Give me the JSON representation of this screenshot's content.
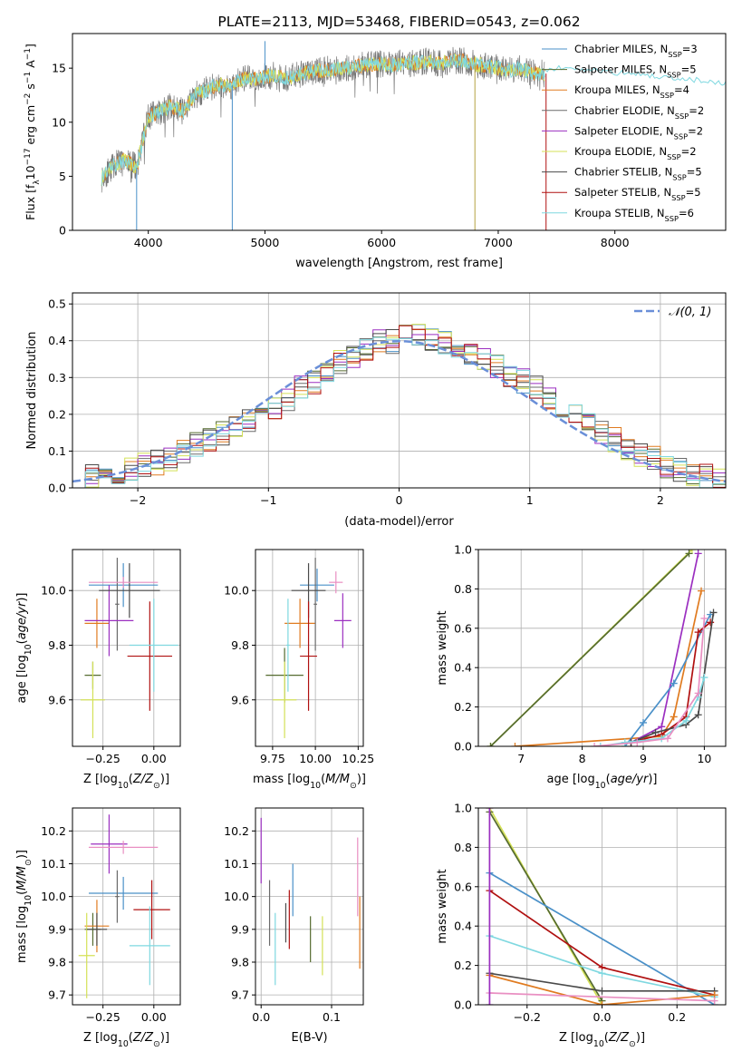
{
  "colors": {
    "Chabrier MILES": "#4a90c8",
    "Salpeter MILES": "#556b2f",
    "Kroupa MILES": "#e07b20",
    "Chabrier ELODIE": "#6b6b6b",
    "Salpeter ELODIE": "#9b2fc0",
    "Kroupa ELODIE": "#d4e157",
    "Chabrier STELIB": "#4a4a4a",
    "Salpeter STELIB": "#b01010",
    "Kroupa STELIB": "#7fd8e0",
    "normal_curve": "#6a8fd8"
  },
  "chart_data": [
    {
      "id": "spectrum",
      "type": "line",
      "title": "PLATE=2113, MJD=53468, FIBERID=0543, z=0.062",
      "xlabel": "wavelength [Angstrom, rest frame]",
      "ylabel": "Flux [f$_\\lambda$10$^{-17}$ erg cm$^{-2}$ s$^{-1}$ A$^{-1}$]",
      "ylabel_parts": {
        "main": "Flux [f",
        "sub": "λ",
        "mid": "10",
        "sup1": "−17",
        "mid2": " erg cm",
        "sup2": "−2",
        "mid3": " s",
        "sup3": "−1",
        "mid4": " A",
        "sup4": "−1",
        "end": "]"
      },
      "xlim": [
        3350,
        8950
      ],
      "ylim": [
        0,
        18.2
      ],
      "xticks": [
        4000,
        5000,
        6000,
        7000,
        8000
      ],
      "yticks": [
        0,
        5,
        10,
        15
      ],
      "legend": [
        {
          "label": "Chabrier MILES, N",
          "sub": "SSP",
          "n": "=3",
          "model": "Chabrier MILES"
        },
        {
          "label": "Salpeter MILES, N",
          "sub": "SSP",
          "n": "=5",
          "model": "Salpeter MILES"
        },
        {
          "label": "Kroupa MILES, N",
          "sub": "SSP",
          "n": "=4",
          "model": "Kroupa MILES"
        },
        {
          "label": "Chabrier ELODIE, N",
          "sub": "SSP",
          "n": "=2",
          "model": "Chabrier ELODIE"
        },
        {
          "label": "Salpeter ELODIE, N",
          "sub": "SSP",
          "n": "=2",
          "model": "Salpeter ELODIE"
        },
        {
          "label": "Kroupa ELODIE, N",
          "sub": "SSP",
          "n": "=2",
          "model": "Kroupa ELODIE"
        },
        {
          "label": "Chabrier STELIB, N",
          "sub": "SSP",
          "n": "=5",
          "model": "Chabrier STELIB"
        },
        {
          "label": "Salpeter STELIB, N",
          "sub": "SSP",
          "n": "=5",
          "model": "Salpeter STELIB"
        },
        {
          "label": "Kroupa STELIB, N",
          "sub": "SSP",
          "n": "=6",
          "model": "Kroupa STELIB"
        }
      ],
      "legend_position": "upper-right",
      "continuum": [
        [
          3600,
          4.8
        ],
        [
          3700,
          6.0
        ],
        [
          3800,
          6.5
        ],
        [
          3900,
          5.8
        ],
        [
          4000,
          10.5
        ],
        [
          4100,
          11.0
        ],
        [
          4200,
          11.5
        ],
        [
          4300,
          11.0
        ],
        [
          4400,
          12.5
        ],
        [
          4500,
          13.0
        ],
        [
          4600,
          13.5
        ],
        [
          4700,
          13.3
        ],
        [
          4800,
          14.0
        ],
        [
          4900,
          14.0
        ],
        [
          5000,
          14.2
        ],
        [
          5100,
          14.3
        ],
        [
          5200,
          14.1
        ],
        [
          5300,
          14.4
        ],
        [
          5400,
          14.7
        ],
        [
          5500,
          14.8
        ],
        [
          5600,
          14.9
        ],
        [
          5700,
          15.0
        ],
        [
          5800,
          15.2
        ],
        [
          5900,
          15.3
        ],
        [
          6000,
          15.4
        ],
        [
          6100,
          15.3
        ],
        [
          6200,
          15.5
        ],
        [
          6300,
          15.5
        ],
        [
          6400,
          15.6
        ],
        [
          6500,
          15.4
        ],
        [
          6600,
          15.7
        ],
        [
          6700,
          15.7
        ],
        [
          6800,
          15.4
        ],
        [
          6900,
          15.2
        ],
        [
          7000,
          15.0
        ],
        [
          7100,
          14.8
        ],
        [
          7200,
          15.0
        ],
        [
          7300,
          14.5
        ],
        [
          7400,
          14.5
        ]
      ],
      "model_segment": [
        [
          7400,
          14.9
        ],
        [
          7600,
          15.1
        ],
        [
          7800,
          14.9
        ],
        [
          8000,
          14.6
        ],
        [
          8200,
          14.4
        ],
        [
          8400,
          14.2
        ],
        [
          8600,
          14.0
        ],
        [
          8800,
          13.8
        ],
        [
          8950,
          13.6
        ]
      ],
      "spikes": [
        [
          3900,
          0
        ],
        [
          4720,
          0
        ],
        [
          5000,
          17.5
        ],
        [
          6800,
          0
        ],
        [
          7410,
          0
        ]
      ]
    },
    {
      "id": "residuals",
      "type": "step",
      "xlabel": "(data-model)/error",
      "ylabel": "Normed distribution",
      "xlim": [
        -2.5,
        2.5
      ],
      "ylim": [
        0,
        0.53
      ],
      "xticks": [
        -2,
        -1,
        0,
        1,
        2
      ],
      "yticks": [
        0.0,
        0.1,
        0.2,
        0.3,
        0.4,
        0.5
      ],
      "legend": [
        {
          "label": "$\\mathcal{N}(0,1)$",
          "text": "𝒩(0, 1)"
        }
      ],
      "legend_position": "upper-right",
      "bin_edges_start": -2.5,
      "bin_width": 0.1,
      "base_hist": [
        0.02,
        0.03,
        0.03,
        0.04,
        0.05,
        0.06,
        0.07,
        0.08,
        0.1,
        0.12,
        0.13,
        0.15,
        0.16,
        0.18,
        0.2,
        0.22,
        0.24,
        0.27,
        0.29,
        0.31,
        0.34,
        0.36,
        0.38,
        0.4,
        0.4,
        0.41,
        0.41,
        0.4,
        0.39,
        0.38,
        0.36,
        0.35,
        0.33,
        0.31,
        0.29,
        0.27,
        0.24,
        0.22,
        0.2,
        0.18,
        0.15,
        0.13,
        0.11,
        0.09,
        0.08,
        0.06,
        0.05,
        0.04,
        0.03,
        0.02
      ]
    },
    {
      "id": "age-vs-Z",
      "type": "errorbar",
      "xlabel": "Z [log$_{10}$($Z/Z_\\odot$)]",
      "ylabel": "age  [log$_{10}$($age/yr$)]",
      "xlim": [
        -0.4,
        0.13
      ],
      "ylim": [
        9.43,
        10.15
      ],
      "xticks": [
        -0.25,
        0.0
      ],
      "yticks": [
        9.6,
        9.8,
        10.0
      ],
      "points": [
        {
          "model": "Chabrier MILES",
          "x": -0.15,
          "xerr": 0.17,
          "y": 10.02,
          "yerr": 0.08
        },
        {
          "model": "Salpeter MILES",
          "x": -0.3,
          "xerr": 0.04,
          "y": 9.69,
          "yerr": 0.05
        },
        {
          "model": "Kroupa MILES",
          "x": -0.28,
          "xerr": 0.06,
          "y": 9.88,
          "yerr": 0.09
        },
        {
          "model": "Chabrier ELODIE",
          "x": -0.18,
          "xerr": 0.01,
          "y": 9.95,
          "yerr": 0.17
        },
        {
          "model": "Salpeter ELODIE",
          "x": -0.22,
          "xerr": 0.12,
          "y": 9.89,
          "yerr": 0.13
        },
        {
          "model": "Kroupa ELODIE",
          "x": -0.3,
          "xerr": 0.06,
          "y": 9.6,
          "yerr": 0.14
        },
        {
          "model": "Chabrier STELIB",
          "x": -0.12,
          "xerr": 0.15,
          "y": 10.0,
          "yerr": 0.1
        },
        {
          "model": "Salpeter STELIB",
          "x": -0.02,
          "xerr": 0.11,
          "y": 9.76,
          "yerr": 0.2
        },
        {
          "model": "Kroupa STELIB",
          "x": 0.0,
          "xerr": 0.12,
          "y": 9.8,
          "yerr": 0.17
        },
        {
          "model": "Salpeter ELODIE",
          "x": -0.15,
          "xerr": 0.17,
          "y": 10.03,
          "yerr": 0.02,
          "alt": "#e98fc2"
        }
      ]
    },
    {
      "id": "age-vs-mass",
      "type": "errorbar",
      "xlabel": "mass [log$_{10}$($M/M_\\odot$)]",
      "ylabel": "",
      "xlim": [
        9.65,
        10.28
      ],
      "ylim": [
        9.43,
        10.15
      ],
      "xticks": [
        9.75,
        10.0,
        10.25
      ],
      "yticks": [
        9.6,
        9.8,
        10.0
      ],
      "points": [
        {
          "model": "Chabrier MILES",
          "x": 10.01,
          "xerr": 0.1,
          "y": 10.02,
          "yerr": 0.06
        },
        {
          "model": "Salpeter MILES",
          "x": 9.82,
          "xerr": 0.11,
          "y": 9.69,
          "yerr": 0.1
        },
        {
          "model": "Kroupa MILES",
          "x": 9.91,
          "xerr": 0.09,
          "y": 9.88,
          "yerr": 0.09
        },
        {
          "model": "Chabrier ELODIE",
          "x": 10.0,
          "xerr": 0.01,
          "y": 9.95,
          "yerr": 0.17
        },
        {
          "model": "Salpeter ELODIE",
          "x": 10.16,
          "xerr": 0.05,
          "y": 9.89,
          "yerr": 0.1
        },
        {
          "model": "Kroupa ELODIE",
          "x": 9.82,
          "xerr": 0.07,
          "y": 9.6,
          "yerr": 0.14
        },
        {
          "model": "Chabrier STELIB",
          "x": 9.96,
          "xerr": 0.1,
          "y": 10.0,
          "yerr": 0.1
        },
        {
          "model": "Salpeter STELIB",
          "x": 9.96,
          "xerr": 0.05,
          "y": 9.76,
          "yerr": 0.2
        },
        {
          "model": "Kroupa STELIB",
          "x": 9.84,
          "xerr": 0.01,
          "y": 9.8,
          "yerr": 0.17
        },
        {
          "model": "Salpeter ELODIE",
          "x": 10.12,
          "xerr": 0.04,
          "y": 10.03,
          "yerr": 0.04,
          "alt": "#e98fc2"
        }
      ]
    },
    {
      "id": "weight-vs-age",
      "type": "line",
      "xlabel": "age  [log$_{10}$($age/yr$)]",
      "ylabel": "mass weight",
      "xlim": [
        6.3,
        10.35
      ],
      "ylim": [
        0,
        1.0
      ],
      "xticks": [
        7,
        8,
        9,
        10
      ],
      "yticks": [
        0.0,
        0.2,
        0.4,
        0.6,
        0.8,
        1.0
      ],
      "series": [
        {
          "model": "Kroupa ELODIE",
          "x": [
            6.5,
            9.8
          ],
          "y": [
            0.0,
            1.0
          ]
        },
        {
          "model": "Salpeter MILES",
          "x": [
            6.5,
            9.75
          ],
          "y": [
            0.0,
            0.98
          ]
        },
        {
          "model": "Kroupa MILES",
          "x": [
            6.9,
            9.3,
            9.5,
            9.95
          ],
          "y": [
            0.0,
            0.05,
            0.15,
            0.79
          ]
        },
        {
          "model": "Salpeter ELODIE",
          "x": [
            8.8,
            9.3,
            9.9
          ],
          "y": [
            0.02,
            0.1,
            0.98
          ]
        },
        {
          "model": "Chabrier MILES",
          "x": [
            8.7,
            9.0,
            9.5,
            10.1
          ],
          "y": [
            0.0,
            0.12,
            0.32,
            0.67
          ]
        },
        {
          "model": "Salpeter STELIB",
          "x": [
            8.8,
            9.3,
            9.7,
            9.9,
            10.1
          ],
          "y": [
            0.02,
            0.06,
            0.15,
            0.58,
            0.63
          ]
        },
        {
          "model": "Chabrier STELIB",
          "x": [
            8.8,
            9.2,
            9.7,
            9.9,
            10.15
          ],
          "y": [
            0.02,
            0.07,
            0.11,
            0.16,
            0.68
          ]
        },
        {
          "model": "Kroupa STELIB",
          "x": [
            8.3,
            8.7,
            9.3,
            9.7,
            9.9,
            10.0
          ],
          "y": [
            0.0,
            0.02,
            0.04,
            0.13,
            0.25,
            0.35
          ]
        },
        {
          "model": "Salpeter ELODIE",
          "x": [
            8.2,
            8.9,
            9.4,
            9.9,
            10.0
          ],
          "y": [
            0.0,
            0.02,
            0.04,
            0.27,
            0.65
          ],
          "alt": "#e98fc2"
        }
      ]
    },
    {
      "id": "mass-vs-Z",
      "type": "errorbar",
      "xlabel": "Z [log$_{10}$($Z/Z_\\odot$)]",
      "ylabel": "mass [log$_{10}$($M/M_\\odot$)]",
      "xlim": [
        -0.4,
        0.13
      ],
      "ylim": [
        9.67,
        10.27
      ],
      "xticks": [
        -0.25,
        0.0
      ],
      "yticks": [
        9.7,
        9.8,
        9.9,
        10.0,
        10.1,
        10.2
      ],
      "points": [
        {
          "model": "Chabrier MILES",
          "x": -0.15,
          "xerr": 0.17,
          "y": 10.01,
          "yerr": 0.05
        },
        {
          "model": "Salpeter MILES",
          "x": -0.3,
          "xerr": 0.04,
          "y": 9.9,
          "yerr": 0.05
        },
        {
          "model": "Kroupa MILES",
          "x": -0.28,
          "xerr": 0.06,
          "y": 9.91,
          "yerr": 0.08
        },
        {
          "model": "Chabrier ELODIE",
          "x": -0.18,
          "xerr": 0.01,
          "y": 10.0,
          "yerr": 0.08
        },
        {
          "model": "Salpeter ELODIE",
          "x": -0.22,
          "xerr": 0.09,
          "y": 10.16,
          "yerr": 0.09
        },
        {
          "model": "Kroupa ELODIE",
          "x": -0.33,
          "xerr": 0.04,
          "y": 9.82,
          "yerr": 0.13
        },
        {
          "model": "Chabrier STELIB",
          "x": -0.28,
          "xerr": 0.05,
          "y": 9.9,
          "yerr": 0.05
        },
        {
          "model": "Salpeter STELIB",
          "x": -0.01,
          "xerr": 0.09,
          "y": 9.96,
          "yerr": 0.09
        },
        {
          "model": "Kroupa STELIB",
          "x": -0.02,
          "xerr": 0.1,
          "y": 9.85,
          "yerr": 0.12
        },
        {
          "model": "Salpeter ELODIE",
          "x": -0.15,
          "xerr": 0.17,
          "y": 10.15,
          "yerr": 0.02,
          "alt": "#e98fc2"
        }
      ]
    },
    {
      "id": "mass-vs-ebv",
      "type": "errorbar",
      "xlabel": "E(B-V)",
      "ylabel": "",
      "xlim": [
        -0.008,
        0.145
      ],
      "ylim": [
        9.67,
        10.27
      ],
      "xticks": [
        0.0,
        0.1
      ],
      "yticks": [
        9.7,
        9.8,
        9.9,
        10.0,
        10.1,
        10.2
      ],
      "points": [
        {
          "model": "Chabrier MILES",
          "x": 0.045,
          "xerr": 0.0,
          "y": 10.02,
          "yerr": 0.08
        },
        {
          "model": "Salpeter MILES",
          "x": 0.07,
          "xerr": 0.0,
          "y": 9.87,
          "yerr": 0.07
        },
        {
          "model": "Kroupa MILES",
          "x": 0.14,
          "xerr": 0.0,
          "y": 9.89,
          "yerr": 0.11
        },
        {
          "model": "Chabrier ELODIE",
          "x": 0.012,
          "xerr": 0.0,
          "y": 9.95,
          "yerr": 0.1
        },
        {
          "model": "Salpeter ELODIE",
          "x": 0.0,
          "xerr": 0.0,
          "y": 10.14,
          "yerr": 0.1
        },
        {
          "model": "Kroupa ELODIE",
          "x": 0.087,
          "xerr": 0.0,
          "y": 9.85,
          "yerr": 0.09
        },
        {
          "model": "Chabrier STELIB",
          "x": 0.035,
          "xerr": 0.0,
          "y": 9.92,
          "yerr": 0.06
        },
        {
          "model": "Salpeter STELIB",
          "x": 0.04,
          "xerr": 0.0,
          "y": 9.93,
          "yerr": 0.09
        },
        {
          "model": "Kroupa STELIB",
          "x": 0.02,
          "xerr": 0.0,
          "y": 9.84,
          "yerr": 0.11
        },
        {
          "model": "Salpeter ELODIE",
          "x": 0.137,
          "xerr": 0.0,
          "y": 10.06,
          "yerr": 0.12,
          "alt": "#e98fc2"
        }
      ]
    },
    {
      "id": "weight-vs-Z",
      "type": "line",
      "xlabel": "Z [log$_{10}$($Z/Z_\\odot$)]",
      "ylabel": "mass weight",
      "xlim": [
        -0.33,
        0.33
      ],
      "ylim": [
        0,
        1.0
      ],
      "xticks": [
        -0.2,
        0.0,
        0.2
      ],
      "yticks": [
        0.0,
        0.2,
        0.4,
        0.6,
        0.8,
        1.0
      ],
      "series": [
        {
          "model": "Kroupa ELODIE",
          "x": [
            -0.3,
            0.0
          ],
          "y": [
            1.0,
            0.0
          ]
        },
        {
          "model": "Salpeter MILES",
          "x": [
            -0.3,
            0.0
          ],
          "y": [
            0.98,
            0.02
          ]
        },
        {
          "model": "Chabrier MILES",
          "x": [
            -0.3,
            0.3
          ],
          "y": [
            0.67,
            0.0
          ]
        },
        {
          "model": "Salpeter STELIB",
          "x": [
            -0.3,
            0.0,
            0.3
          ],
          "y": [
            0.58,
            0.19,
            0.05
          ]
        },
        {
          "model": "Kroupa STELIB",
          "x": [
            -0.3,
            0.0,
            0.3
          ],
          "y": [
            0.35,
            0.16,
            0.04
          ]
        },
        {
          "model": "Chabrier STELIB",
          "x": [
            -0.3,
            0.0,
            0.3
          ],
          "y": [
            0.16,
            0.07,
            0.07
          ]
        },
        {
          "model": "Kroupa MILES",
          "x": [
            -0.3,
            0.0,
            0.3
          ],
          "y": [
            0.15,
            0.0,
            0.05
          ]
        },
        {
          "model": "Salpeter ELODIE",
          "x": [
            -0.3,
            0.3
          ],
          "y": [
            0.06,
            0.02
          ],
          "alt": "#e98fc2"
        },
        {
          "model": "Salpeter ELODIE",
          "x": [
            -0.3,
            -0.3
          ],
          "y": [
            0.0,
            1.0
          ]
        }
      ]
    }
  ]
}
